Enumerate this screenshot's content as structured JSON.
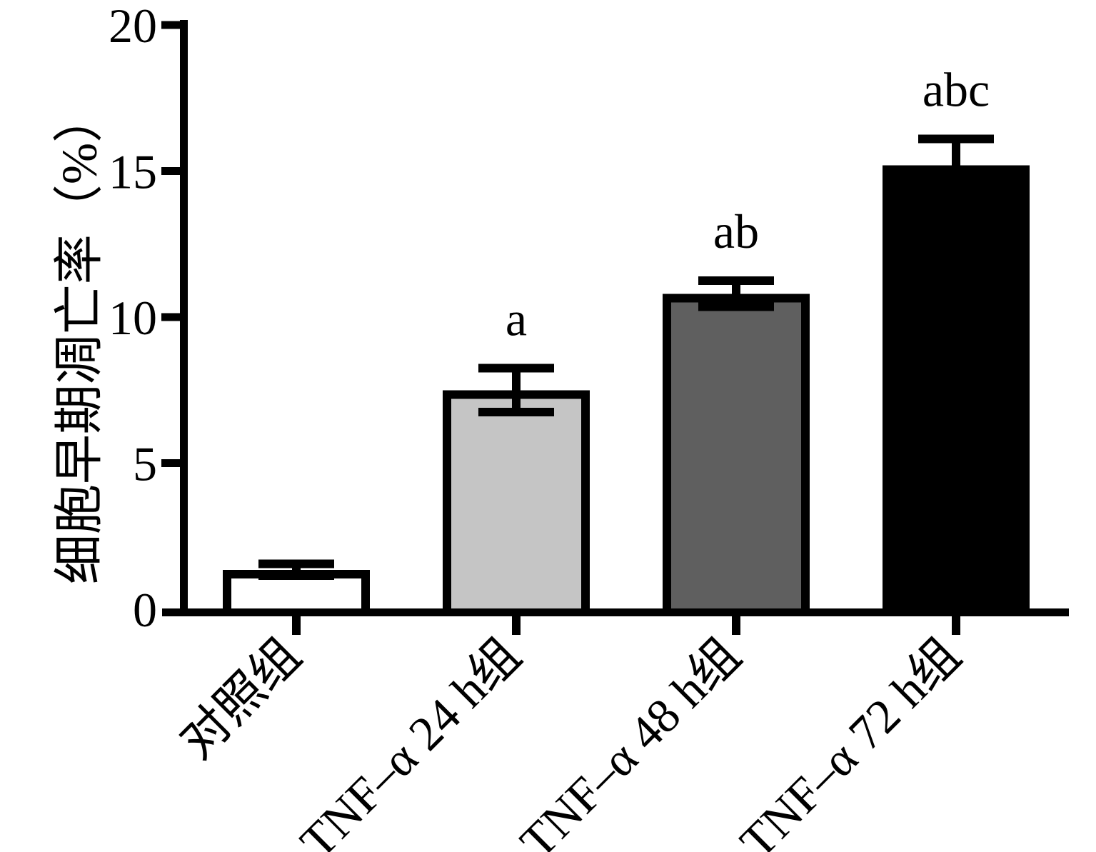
{
  "figure": {
    "background_color": "#ffffff",
    "axis_color": "#000000"
  },
  "chart_data": {
    "type": "bar",
    "title": "",
    "xlabel": "",
    "ylabel": "细胞早期凋亡率（%）",
    "ylim": [
      0,
      20
    ],
    "yticks": [
      0,
      5,
      10,
      15,
      20
    ],
    "grid": false,
    "legend": false,
    "categories": [
      "对照组",
      "TNF–α 24 h组",
      "TNF–α 48 h组",
      "TNF–α 72 h组"
    ],
    "values": [
      1.35,
      7.5,
      10.8,
      15.2
    ],
    "errors": [
      0.2,
      0.75,
      0.45,
      0.9
    ],
    "error_bar_direction": "both",
    "significance_labels": [
      "",
      "a",
      "ab",
      "abc"
    ],
    "bar_fill_colors": [
      "#ffffff",
      "#c5c5c5",
      "#5f5f5f",
      "#000000"
    ],
    "bar_edge_color": "#000000"
  }
}
